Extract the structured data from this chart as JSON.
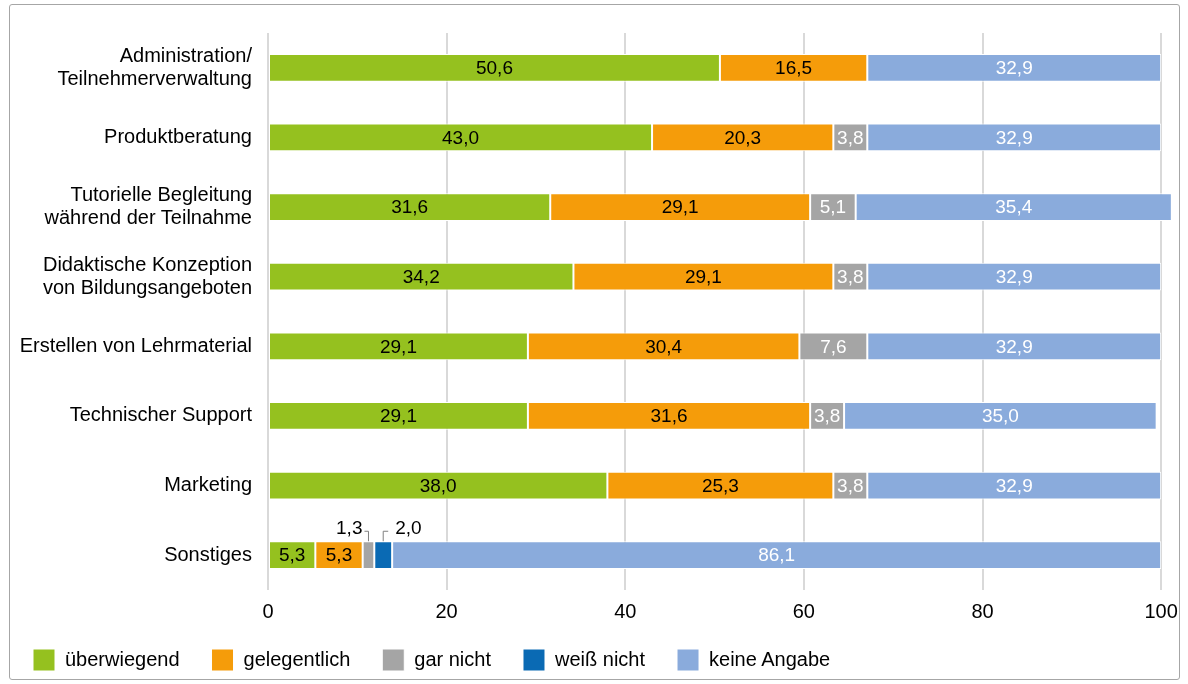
{
  "chart_data": {
    "type": "bar",
    "orientation": "horizontal",
    "stacked": true,
    "categories": [
      "Administration/\nTeilnehmerverwaltung",
      "Produktberatung",
      "Tutorielle Begleitung\nwährend der Teilnahme",
      "Didaktische Konzeption\nvon Bildungsangeboten",
      "Erstellen von Lehrmaterial",
      "Technischer Support",
      "Marketing",
      "Sonstiges"
    ],
    "series": [
      {
        "name": "überwiegend",
        "color": "#95c11f",
        "values": [
          50.6,
          43.0,
          31.6,
          34.2,
          29.1,
          29.1,
          38.0,
          5.3
        ],
        "value_labels": [
          "50,6",
          "43,0",
          "31,6",
          "34,2",
          "29,1",
          "29,1",
          "38,0",
          "5,3"
        ]
      },
      {
        "name": "gelegentlich",
        "color": "#f59c0a",
        "values": [
          16.5,
          20.3,
          29.1,
          29.1,
          30.4,
          31.6,
          25.3,
          5.3
        ],
        "value_labels": [
          "16,5",
          "20,3",
          "29,1",
          "29,1",
          "30,4",
          "31,6",
          "25,3",
          "5,3"
        ]
      },
      {
        "name": "gar nicht",
        "color": "#a5a5a5",
        "values": [
          null,
          3.8,
          5.1,
          3.8,
          7.6,
          3.8,
          3.8,
          1.3
        ],
        "value_labels": [
          null,
          "3,8",
          "5,1",
          "3,8",
          "7,6",
          "3,8",
          "3,8",
          "1,3"
        ]
      },
      {
        "name": "weiß nicht",
        "color": "#0a6ab4",
        "values": [
          null,
          null,
          null,
          null,
          null,
          null,
          null,
          2.0
        ],
        "value_labels": [
          null,
          null,
          null,
          null,
          null,
          null,
          null,
          "2,0"
        ]
      },
      {
        "name": "keine Angabe",
        "color": "#8aabdc",
        "values": [
          32.9,
          32.9,
          35.4,
          32.9,
          32.9,
          35.0,
          32.9,
          86.1
        ],
        "value_labels": [
          "32,9",
          "32,9",
          "35,4",
          "32,9",
          "32,9",
          "35,0",
          "32,9",
          "86,1"
        ]
      }
    ],
    "xlim": [
      0,
      101.2
    ],
    "xticks": [
      0,
      20,
      40,
      60,
      80,
      100
    ],
    "grid": "x",
    "legend": "bottom left"
  }
}
